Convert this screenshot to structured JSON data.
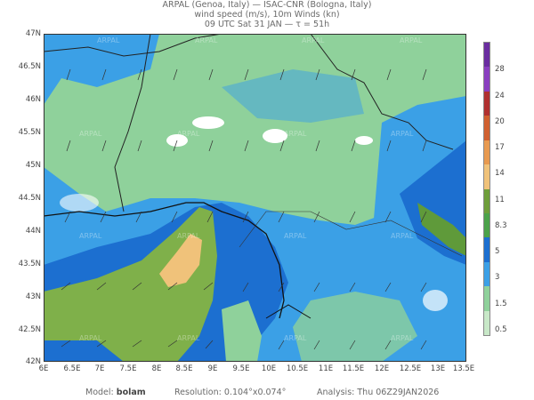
{
  "header": {
    "line1": "ARPAL (Genoa, Italy)  —  ISAC-CNR (Bologna, Italy)",
    "line2": "wind speed (m/s), 10m Winds (kn)",
    "line3": "09 UTC Sat 31 JAN  —  τ = 51h"
  },
  "map": {
    "lat_labels": [
      "47N",
      "46.5N",
      "46N",
      "45.5N",
      "45N",
      "44.5N",
      "44N",
      "43.5N",
      "43N",
      "42.5N",
      "42N"
    ],
    "lon_labels": [
      "6E",
      "6.5E",
      "7E",
      "7.5E",
      "8E",
      "8.5E",
      "9E",
      "9.5E",
      "10E",
      "10.5E",
      "11E",
      "11.5E",
      "12E",
      "12.5E",
      "13E",
      "13.5E"
    ],
    "watermark": "ARPAL",
    "colors": {
      "light_green": "#8fd19b",
      "blue": "#3ba0e6",
      "dark_blue": "#1c6fd0",
      "olive": "#7fb04a",
      "olive_dark": "#5f9a3a",
      "orange": "#f0c27a",
      "white": "#ffffff"
    }
  },
  "colorbar": {
    "labels": [
      "28",
      "24",
      "20",
      "17",
      "14",
      "11",
      "8.3",
      "5",
      "3",
      "1.5",
      "0.5"
    ],
    "colors": [
      "#6a2da0",
      "#8a3fc0",
      "#b03030",
      "#d06030",
      "#e89a50",
      "#f0c27a",
      "#6e9e3a",
      "#4ba24a",
      "#1c6fd0",
      "#3ba0e6",
      "#8fd19b",
      "#c8e8c8"
    ]
  },
  "footer": {
    "model_label": "Model:",
    "model_value": "bolam",
    "resolution_label": "Resolution:",
    "resolution_value": "0.104°x0.074°",
    "analysis_label": "Analysis:",
    "analysis_value": "Thu 06Z29JAN2026"
  }
}
